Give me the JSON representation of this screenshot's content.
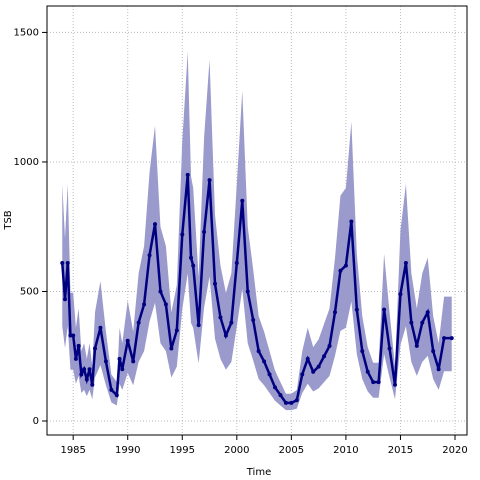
{
  "chart_data": {
    "type": "line",
    "xlabel": "Time",
    "ylabel": "TSB",
    "x": [
      1984,
      1984.25,
      1984.5,
      1984.75,
      1985,
      1985.25,
      1985.5,
      1985.75,
      1986,
      1986.25,
      1986.5,
      1986.75,
      1987,
      1987.5,
      1988,
      1988.5,
      1989,
      1989.25,
      1989.5,
      1990,
      1990.5,
      1991,
      1991.5,
      1992,
      1992.5,
      1993,
      1993.5,
      1994,
      1994.5,
      1995,
      1995.5,
      1995.8,
      1996,
      1996.5,
      1997,
      1997.5,
      1998,
      1998.5,
      1999,
      1999.5,
      2000,
      2000.5,
      2001,
      2001.5,
      2002,
      2002.5,
      2003,
      2003.5,
      2004,
      2004.5,
      2005,
      2005.5,
      2006,
      2006.5,
      2007,
      2007.5,
      2008,
      2008.5,
      2009,
      2009.5,
      2010,
      2010.5,
      2011,
      2011.5,
      2012,
      2012.5,
      2013,
      2013.5,
      2014,
      2014.5,
      2015,
      2015.5,
      2016,
      2016.5,
      2017,
      2017.5,
      2018,
      2018.5,
      2019,
      2019.7
    ],
    "series": [
      {
        "color": "#000080",
        "band_color": "#9a9acc",
        "values": [
          610,
          470,
          610,
          330,
          330,
          240,
          290,
          180,
          200,
          160,
          200,
          140,
          280,
          360,
          230,
          120,
          100,
          240,
          200,
          310,
          230,
          380,
          450,
          640,
          760,
          500,
          450,
          280,
          350,
          720,
          950,
          630,
          600,
          370,
          730,
          930,
          530,
          400,
          330,
          380,
          610,
          850,
          500,
          390,
          270,
          230,
          180,
          130,
          100,
          70,
          70,
          80,
          180,
          240,
          190,
          210,
          250,
          290,
          420,
          580,
          600,
          770,
          430,
          270,
          190,
          150,
          150,
          430,
          280,
          140,
          490,
          610,
          380,
          290,
          380,
          420,
          270,
          200,
          320,
          320
        ],
        "lower": [
          366,
          282,
          366,
          198,
          198,
          144,
          174,
          108,
          120,
          96,
          120,
          84,
          168,
          216,
          138,
          72,
          60,
          144,
          120,
          186,
          138,
          228,
          270,
          384,
          456,
          300,
          270,
          168,
          210,
          432,
          570,
          378,
          360,
          222,
          438,
          558,
          318,
          240,
          198,
          228,
          366,
          510,
          300,
          234,
          162,
          138,
          108,
          78,
          60,
          42,
          42,
          48,
          108,
          144,
          114,
          126,
          150,
          174,
          252,
          348,
          360,
          462,
          258,
          162,
          114,
          90,
          90,
          258,
          168,
          84,
          294,
          366,
          228,
          174,
          228,
          252,
          162,
          120,
          192,
          192
        ],
        "upper": [
          915,
          705,
          915,
          495,
          495,
          360,
          435,
          270,
          300,
          240,
          300,
          210,
          420,
          540,
          345,
          180,
          150,
          360,
          300,
          465,
          345,
          570,
          675,
          960,
          1140,
          750,
          675,
          420,
          525,
          1080,
          1425,
          945,
          900,
          555,
          1095,
          1395,
          795,
          600,
          495,
          570,
          915,
          1275,
          750,
          585,
          405,
          345,
          270,
          195,
          150,
          105,
          105,
          120,
          270,
          360,
          285,
          315,
          375,
          435,
          630,
          870,
          900,
          1155,
          645,
          405,
          285,
          225,
          225,
          645,
          420,
          210,
          735,
          915,
          570,
          435,
          570,
          630,
          405,
          300,
          480,
          480
        ]
      }
    ],
    "xlim": [
      1982.6,
      2021.1
    ],
    "ylim": [
      -54,
      1602
    ],
    "xticks": [
      1985,
      1990,
      1995,
      2000,
      2005,
      2010,
      2015,
      2020
    ],
    "yticks": [
      0,
      500,
      1000,
      1500
    ],
    "grid": true
  }
}
